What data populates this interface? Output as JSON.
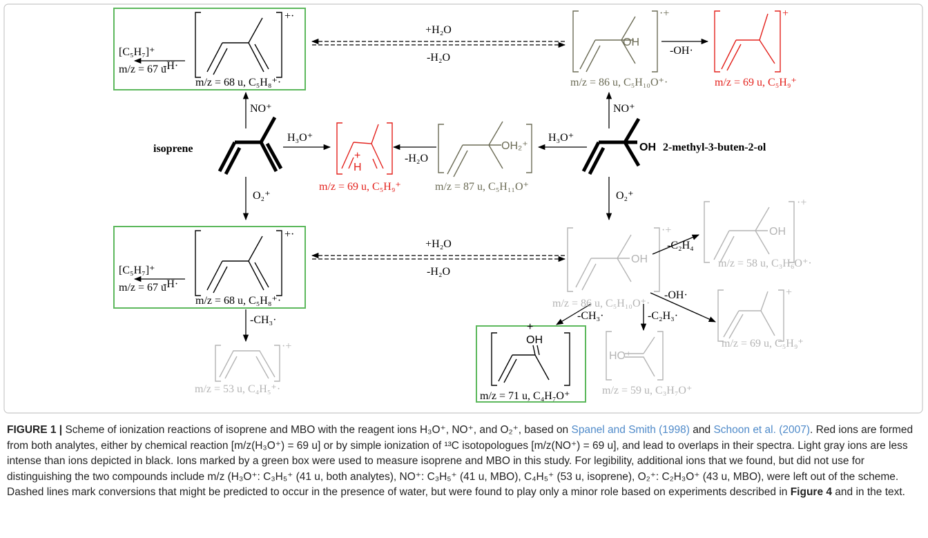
{
  "nodes": [
    {
      "label": "m/z = 68 u, C₅H₈⁺·",
      "charge": "+·",
      "fragment": "[C₅H₇]⁺",
      "fragment_mz": "m/z = 67 u"
    },
    {
      "label": "m/z = 86 u, C₅H₁₀O⁺·",
      "charge": "·+",
      "group": "OH"
    },
    {
      "label": "m/z = 69 u, C₅H₉⁺",
      "charge": "+"
    },
    {
      "name": "isoprene"
    },
    {
      "label": "m/z = 69 u, C₅H₉⁺",
      "charge": "+",
      "group": "H"
    },
    {
      "label": "m/z = 87 u, C₅H₁₁O⁺",
      "group": "OH₂⁺"
    },
    {
      "name": "2-methyl-3-buten-2-ol",
      "group": "OH"
    },
    {
      "label": "m/z = 68 u, C₅H₈⁺·",
      "charge": "+·",
      "fragment": "[C₅H₇]⁺",
      "fragment_mz": "m/z = 67 u"
    },
    {
      "label": "m/z = 86 u, C₅H₁₀O⁺·",
      "charge": "·+",
      "group": "OH"
    },
    {
      "label": "m/z = 58 u, C₃H₆O⁺·",
      "charge": "·+",
      "group": "OH"
    },
    {
      "label": "m/z = 69 u, C₅H₉⁺",
      "charge": "+"
    },
    {
      "label": "m/z = 53 u, C₄H₅⁺·",
      "charge": "·+"
    },
    {
      "label": "m/z = 71 u, C₄H₇O⁺",
      "charge": "+",
      "group": "OH"
    },
    {
      "label": "m/z = 59 u, C₃H₇O⁺",
      "group": "HO⁺"
    }
  ],
  "edges": [
    {
      "label": "-H·"
    },
    {
      "labels": [
        "+H₂O",
        "-H₂O"
      ]
    },
    {
      "label": "-OH·"
    },
    {
      "label": "NO⁺"
    },
    {
      "label": "NO⁺"
    },
    {
      "label": "H₃O⁺"
    },
    {
      "label": "-H₂O"
    },
    {
      "label": "H₃O⁺"
    },
    {
      "label": "O₂⁺"
    },
    {
      "label": "O₂⁺"
    },
    {
      "label": "-H·"
    },
    {
      "labels": [
        "+H₂O",
        "-H₂O"
      ]
    },
    {
      "label": "-C₂H₄"
    },
    {
      "label": "-OH·"
    },
    {
      "label": "-CH₃·"
    },
    {
      "label": "-CH₃·"
    },
    {
      "label": "-C₂H₃·"
    }
  ],
  "caption": {
    "label": "FIGURE 1 |",
    "parts": [
      " Scheme of ionization reactions of isoprene and MBO with the reagent ions H₃O⁺, NO⁺, and O₂⁺, based on ",
      "Spanel and Smith (1998)",
      " and ",
      "Schoon et al. (2007)",
      ". Red ions are formed from both analytes, either by chemical reaction [m/z(H₃O⁺) = 69 u] or by simple ionization of ¹³C isotopologues [m/z(NO⁺) = 69 u], and lead to overlaps in their spectra. Light gray ions are less intense than ions depicted in black. Ions marked by a green box were used to measure isoprene and MBO in this study. For legibility, additional ions that we found, but did not use for distinguishing the two compounds include m/z (H₃O⁺: C₃H₅⁺ (41 u, both analytes), NO⁺: C₃H₅⁺ (41 u, MBO), C₄H₅⁺ (53 u, isoprene), O₂⁺: C₂H₃O⁺ (43 u, MBO), were left out of the scheme. Dashed lines mark conversions that might be predicted to occur in the presence of water, but were found to play only a minor role based on experiments described in ",
      "Figure 4",
      " and in the text."
    ]
  }
}
